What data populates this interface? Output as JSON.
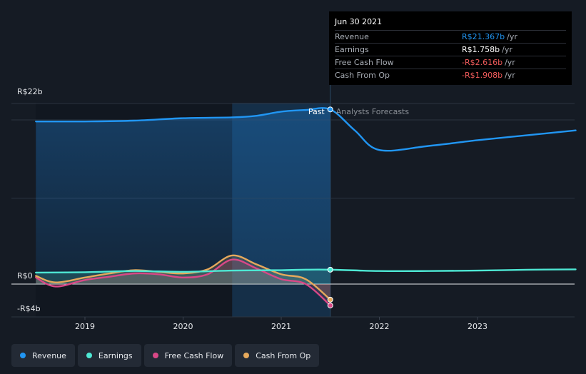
{
  "chart_data": {
    "type": "line",
    "x_ticks": [
      "2019",
      "2020",
      "2021",
      "2022",
      "2023"
    ],
    "y_ticks": [
      "R$22b",
      "R$0",
      "-R$4b"
    ],
    "ylim": [
      -4,
      22
    ],
    "divider_date": 2021.5,
    "past_label": "Past",
    "forecast_label": "Analysts Forecasts",
    "series": [
      {
        "name": "Revenue",
        "color": "#2196f3",
        "x": [
          2018.5,
          2019.0,
          2019.5,
          2020.0,
          2020.5,
          2020.75,
          2021.0,
          2021.25,
          2021.5,
          2021.75,
          2022.0,
          2022.5,
          2023.0,
          2023.5,
          2024.0
        ],
        "y": [
          19.9,
          19.9,
          20.0,
          20.3,
          20.4,
          20.6,
          21.1,
          21.3,
          21.37,
          18.8,
          16.4,
          16.9,
          17.6,
          18.2,
          18.8
        ]
      },
      {
        "name": "Earnings",
        "color": "#4ee8d4",
        "x": [
          2018.5,
          2019.0,
          2019.5,
          2020.0,
          2020.5,
          2021.0,
          2021.25,
          2021.5,
          2022.0,
          2022.5,
          2023.0,
          2023.5,
          2024.0
        ],
        "y": [
          1.4,
          1.45,
          1.6,
          1.5,
          1.65,
          1.7,
          1.76,
          1.758,
          1.6,
          1.6,
          1.65,
          1.75,
          1.8
        ]
      },
      {
        "name": "Free Cash Flow",
        "color": "#d94887",
        "x": [
          2018.5,
          2018.7,
          2019.0,
          2019.25,
          2019.5,
          2019.75,
          2020.0,
          2020.25,
          2020.5,
          2020.75,
          2021.0,
          2021.25,
          2021.5
        ],
        "y": [
          0.8,
          -0.3,
          0.5,
          0.9,
          1.3,
          1.2,
          0.8,
          1.2,
          3.0,
          1.9,
          0.6,
          0.0,
          -2.616
        ]
      },
      {
        "name": "Cash From Op",
        "color": "#e6a95c",
        "x": [
          2018.5,
          2018.7,
          2019.0,
          2019.25,
          2019.5,
          2019.75,
          2020.0,
          2020.25,
          2020.5,
          2020.75,
          2021.0,
          2021.25,
          2021.5
        ],
        "y": [
          1.0,
          0.2,
          0.8,
          1.3,
          1.7,
          1.5,
          1.3,
          1.8,
          3.5,
          2.4,
          1.2,
          0.6,
          -1.908
        ]
      }
    ]
  },
  "tooltip": {
    "date": "Jun 30 2021",
    "rows": [
      {
        "label": "Revenue",
        "value": "R$21.367b",
        "unit": "/yr",
        "color": "#2196f3"
      },
      {
        "label": "Earnings",
        "value": "R$1.758b",
        "unit": "/yr",
        "color": "#ffffff"
      },
      {
        "label": "Free Cash Flow",
        "value": "-R$2.616b",
        "unit": "/yr",
        "color": "#f05b5b"
      },
      {
        "label": "Cash From Op",
        "value": "-R$1.908b",
        "unit": "/yr",
        "color": "#f05b5b"
      }
    ]
  },
  "legend": [
    {
      "label": "Revenue",
      "color": "#2196f3"
    },
    {
      "label": "Earnings",
      "color": "#4ee8d4"
    },
    {
      "label": "Free Cash Flow",
      "color": "#d94887"
    },
    {
      "label": "Cash From Op",
      "color": "#e6a95c"
    }
  ]
}
